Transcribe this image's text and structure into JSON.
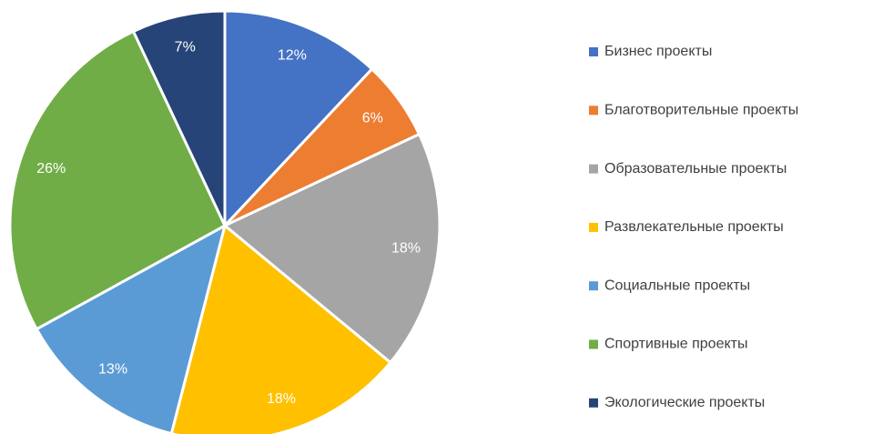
{
  "chart_data": {
    "type": "pie",
    "categories": [
      "Бизнес проекты",
      "Благотворительные проекты",
      "Образовательные проекты",
      "Развлекательные проекты",
      "Социальные проекты",
      "Спортивные проекты",
      "Экологические проекты"
    ],
    "values": [
      12,
      6,
      18,
      18,
      13,
      26,
      7
    ],
    "value_labels": [
      "12%",
      "6%",
      "18%",
      "18%",
      "13%",
      "26%",
      "7%"
    ],
    "colors": [
      "#4472c4",
      "#ed7d31",
      "#a5a5a5",
      "#ffc000",
      "#5b9bd5",
      "#70ad47",
      "#264478"
    ],
    "legend": "right"
  }
}
